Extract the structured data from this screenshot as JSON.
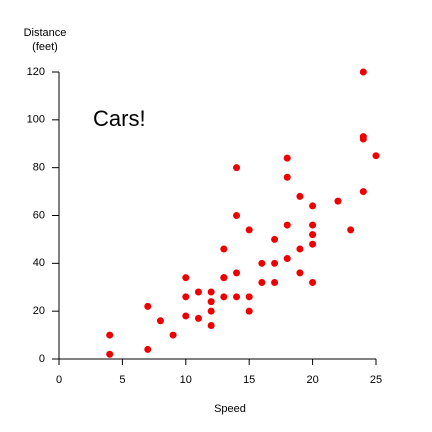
{
  "chart_data": {
    "type": "scatter",
    "x_label": "Speed",
    "y_label": [
      "Distance",
      "(feet)"
    ],
    "annotation": "Cars!",
    "annotation_color": "#0000ee",
    "color": "#ee0000",
    "x": [
      4,
      4,
      7,
      7,
      8,
      9,
      10,
      10,
      10,
      11,
      11,
      12,
      12,
      12,
      12,
      13,
      13,
      13,
      13,
      14,
      14,
      14,
      14,
      15,
      15,
      15,
      16,
      16,
      17,
      17,
      17,
      18,
      18,
      18,
      18,
      19,
      19,
      19,
      20,
      20,
      20,
      20,
      20,
      22,
      23,
      24,
      24,
      24,
      24,
      25
    ],
    "values": [
      2,
      10,
      4,
      22,
      16,
      10,
      18,
      26,
      34,
      17,
      28,
      14,
      20,
      24,
      28,
      26,
      34,
      34,
      46,
      26,
      36,
      60,
      80,
      20,
      26,
      54,
      32,
      40,
      32,
      40,
      50,
      42,
      56,
      76,
      84,
      36,
      46,
      68,
      32,
      48,
      52,
      56,
      64,
      66,
      54,
      70,
      92,
      93,
      120,
      85
    ],
    "xlim": [
      0,
      25
    ],
    "xticks": [
      0,
      5,
      10,
      15,
      20,
      25
    ],
    "ylim": [
      0,
      120
    ],
    "yticks": [
      0,
      20,
      40,
      60,
      80,
      100,
      120
    ]
  }
}
